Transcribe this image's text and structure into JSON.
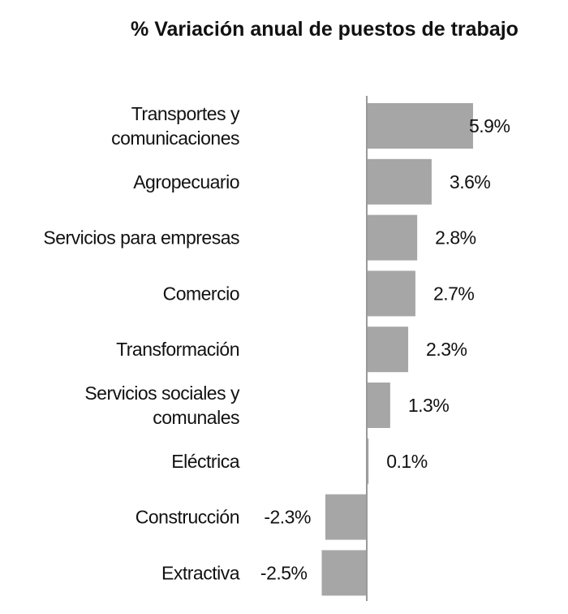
{
  "chart_data": {
    "type": "bar",
    "orientation": "horizontal",
    "title": "% Variación anual de puestos de trabajo",
    "xlabel": "",
    "ylabel": "",
    "grid": false,
    "bar_color": "#a6a6a6",
    "categories": [
      [
        "Transportes y",
        "comunicaciones"
      ],
      [
        "Agropecuario"
      ],
      [
        "Servicios para empresas"
      ],
      [
        "Comercio"
      ],
      [
        "Transformación"
      ],
      [
        "Servicios sociales y",
        "comunales"
      ],
      [
        "Eléctrica"
      ],
      [
        "Construcción"
      ],
      [
        "Extractiva"
      ]
    ],
    "values": [
      5.9,
      3.6,
      2.8,
      2.7,
      2.3,
      1.3,
      0.1,
      -2.3,
      -2.5
    ],
    "labels": [
      "5.9%",
      "3.6%",
      "2.8%",
      "2.7%",
      "2.3%",
      "1.3%",
      "0.1%",
      "-2.3%",
      "-2.5%"
    ]
  }
}
